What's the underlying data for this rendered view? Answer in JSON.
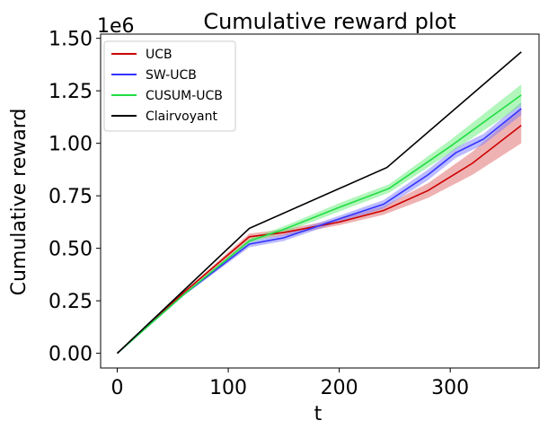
{
  "chart_data": {
    "type": "line",
    "title": "Cumulative reward plot",
    "xlabel": "t",
    "ylabel": "Cumulative reward",
    "y_offset_label": "1e6",
    "xlim": [
      -15,
      380
    ],
    "ylim": [
      -0.07,
      1.52
    ],
    "x_ticks": [
      0,
      100,
      200,
      300
    ],
    "x_tick_labels": [
      "0",
      "100",
      "200",
      "300"
    ],
    "y_ticks": [
      0.0,
      0.25,
      0.5,
      0.75,
      1.0,
      1.25,
      1.5
    ],
    "y_tick_labels": [
      "0.00",
      "0.25",
      "0.50",
      "0.75",
      "1.00",
      "1.25",
      "1.50"
    ],
    "grid": false,
    "legend_position": "top-left",
    "series": [
      {
        "name": "UCB",
        "color": "#cc0000",
        "band_color": "#e06666",
        "x": [
          0,
          60,
          119,
          150,
          200,
          240,
          280,
          320,
          364
        ],
        "y": [
          0.0,
          0.29,
          0.555,
          0.575,
          0.625,
          0.68,
          0.775,
          0.905,
          1.085
        ],
        "lower": [
          0.0,
          0.285,
          0.54,
          0.56,
          0.61,
          0.66,
          0.74,
          0.85,
          1.0
        ],
        "upper": [
          0.0,
          0.295,
          0.57,
          0.59,
          0.64,
          0.7,
          0.81,
          0.96,
          1.165
        ]
      },
      {
        "name": "SW-UCB",
        "color": "#3333ff",
        "band_color": "#7a7aff",
        "x": [
          0,
          60,
          119,
          150,
          200,
          240,
          280,
          305,
          330,
          364
        ],
        "y": [
          0.0,
          0.28,
          0.52,
          0.55,
          0.64,
          0.71,
          0.85,
          0.955,
          1.02,
          1.165
        ],
        "lower": [
          0.0,
          0.275,
          0.505,
          0.535,
          0.625,
          0.69,
          0.825,
          0.93,
          0.995,
          1.135
        ],
        "upper": [
          0.0,
          0.285,
          0.535,
          0.565,
          0.655,
          0.73,
          0.875,
          0.98,
          1.045,
          1.195
        ]
      },
      {
        "name": "CUSUM-UCB",
        "color": "#22dd44",
        "band_color": "#66ee77",
        "x": [
          0,
          60,
          119,
          150,
          200,
          245,
          300,
          364
        ],
        "y": [
          0.0,
          0.28,
          0.535,
          0.59,
          0.695,
          0.785,
          0.985,
          1.23
        ],
        "lower": [
          0.0,
          0.275,
          0.525,
          0.575,
          0.675,
          0.765,
          0.955,
          1.18
        ],
        "upper": [
          0.0,
          0.285,
          0.545,
          0.605,
          0.715,
          0.805,
          1.015,
          1.28
        ]
      },
      {
        "name": "Clairvoyant",
        "color": "#000000",
        "x": [
          0,
          119,
          243,
          364
        ],
        "y": [
          0.0,
          0.595,
          0.885,
          1.435
        ]
      }
    ]
  }
}
